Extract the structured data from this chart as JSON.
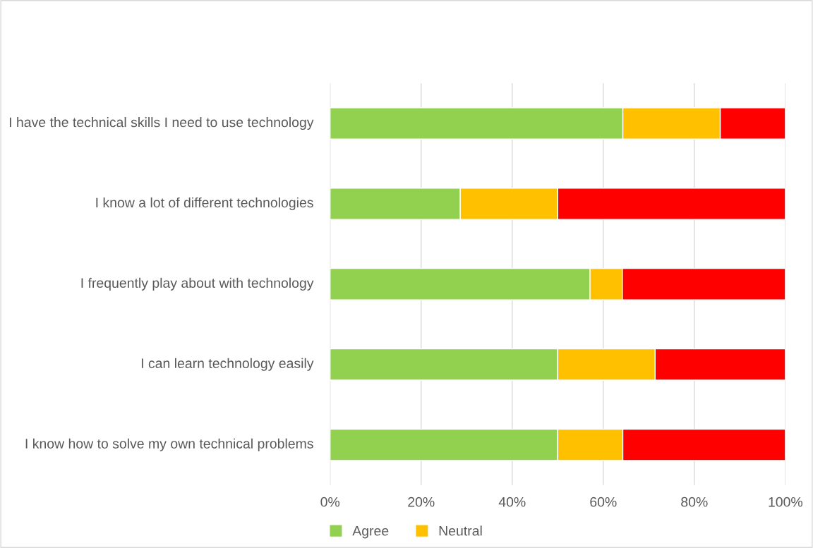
{
  "chart_data": {
    "type": "bar",
    "orientation": "horizontal",
    "stacked": true,
    "categories": [
      "I have the technical skills I need to use technology",
      "I know a lot of different technologies",
      "I frequently play about with technology",
      "I can learn technology easily",
      "I know how to solve my own technical problems"
    ],
    "series": [
      {
        "name": "Agree",
        "color": "#92d050",
        "values": [
          64.3,
          28.6,
          57.1,
          50.0,
          50.0
        ]
      },
      {
        "name": "Neutral",
        "color": "#ffc000",
        "values": [
          21.4,
          21.4,
          7.1,
          21.4,
          14.3
        ]
      },
      {
        "color": "#ff0000",
        "values": [
          14.3,
          50.0,
          35.8,
          28.6,
          35.7
        ]
      }
    ],
    "xlim": [
      0,
      100
    ],
    "xticks": [
      {
        "value": 0,
        "label": "0%"
      },
      {
        "value": 20,
        "label": "20%"
      },
      {
        "value": 40,
        "label": "40%"
      },
      {
        "value": 60,
        "label": "60%"
      },
      {
        "value": 80,
        "label": "80%"
      },
      {
        "value": 100,
        "label": "100%"
      }
    ],
    "grid": "x",
    "legend": "bottom"
  }
}
